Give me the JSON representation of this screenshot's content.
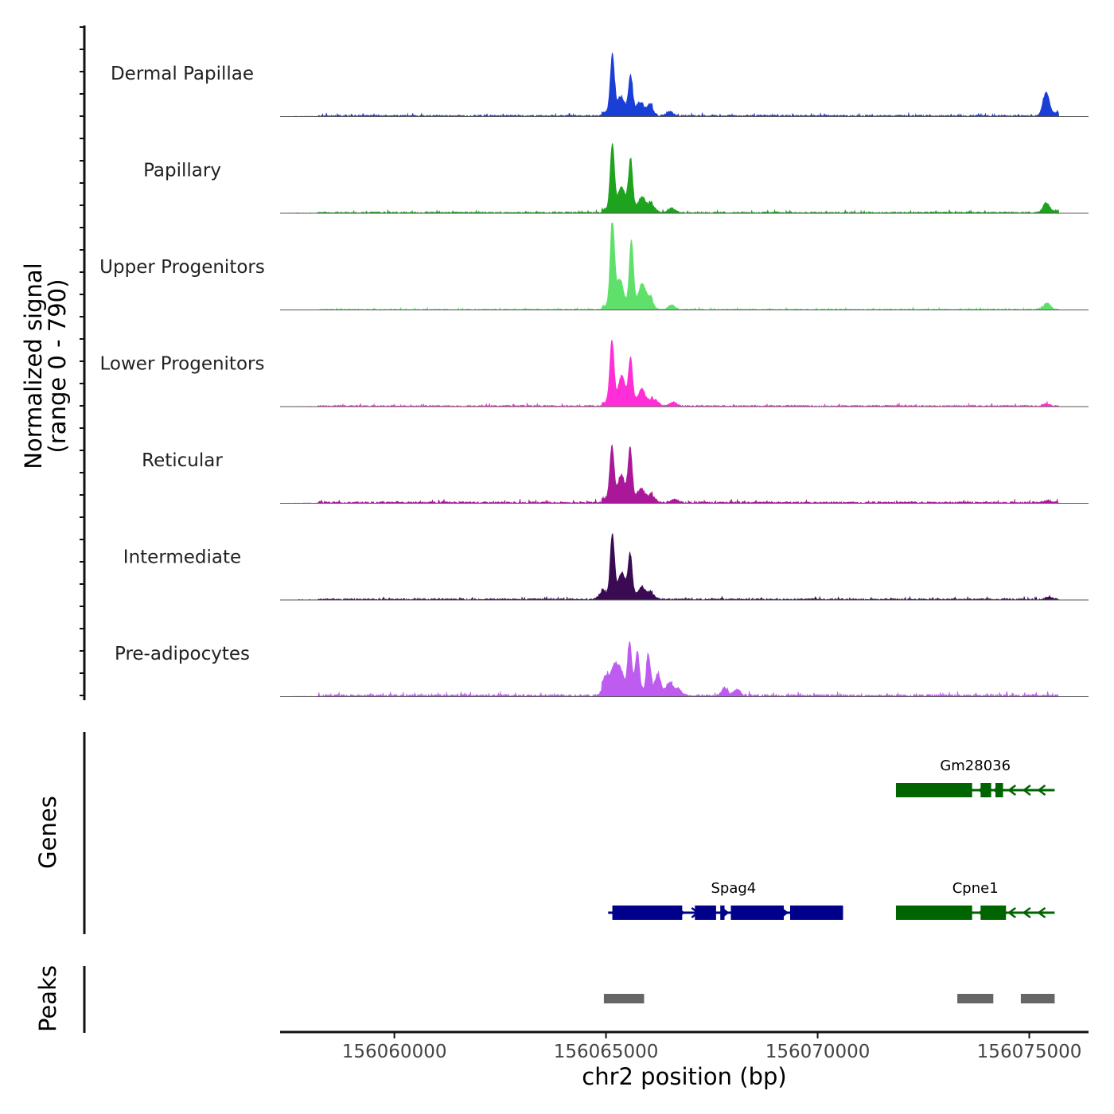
{
  "chart_data": {
    "type": "area",
    "title": "",
    "xlabel": "chr2 position (bp)",
    "ylabel": "Normalized signal",
    "ylabel_range": "(range 0 - 790)",
    "y_range": [
      0,
      790
    ],
    "xlim": [
      156057300,
      156076400
    ],
    "x_ticks": [
      156060000,
      156065000,
      156070000,
      156075000
    ],
    "x_tick_labels": [
      "156060000",
      "156065000",
      "156070000",
      "156075000"
    ],
    "tracks": [
      {
        "name": "Dermal Papillae",
        "color": "#1a3fd6",
        "peaks": [
          [
            156065150,
            520
          ],
          [
            156065350,
            140
          ],
          [
            156065580,
            330
          ],
          [
            156065800,
            90
          ],
          [
            156066050,
            70
          ],
          [
            156066500,
            40
          ],
          [
            156075400,
            210
          ],
          [
            156075680,
            30
          ]
        ],
        "noise": 16
      },
      {
        "name": "Papillary",
        "color": "#1da31d",
        "peaks": [
          [
            156065150,
            590
          ],
          [
            156065370,
            200
          ],
          [
            156065580,
            450
          ],
          [
            156065850,
            110
          ],
          [
            156066100,
            60
          ],
          [
            156066550,
            40
          ],
          [
            156075400,
            90
          ],
          [
            156075650,
            20
          ]
        ],
        "noise": 14
      },
      {
        "name": "Upper Progenitors",
        "color": "#5fe06a",
        "peaks": [
          [
            156065150,
            790
          ],
          [
            156065330,
            240
          ],
          [
            156065600,
            600
          ],
          [
            156065850,
            200
          ],
          [
            156066050,
            80
          ],
          [
            156066550,
            40
          ],
          [
            156075420,
            60
          ]
        ],
        "noise": 10
      },
      {
        "name": "Lower Progenitors",
        "color": "#ff2ed6",
        "peaks": [
          [
            156065140,
            560
          ],
          [
            156065370,
            240
          ],
          [
            156065580,
            400
          ],
          [
            156065850,
            120
          ],
          [
            156066150,
            60
          ],
          [
            156066600,
            35
          ],
          [
            156075400,
            20
          ]
        ],
        "noise": 14
      },
      {
        "name": "Reticular",
        "color": "#aa1899",
        "peaks": [
          [
            156065140,
            480
          ],
          [
            156065360,
            220
          ],
          [
            156065570,
            460
          ],
          [
            156065830,
            90
          ],
          [
            156066100,
            50
          ],
          [
            156066600,
            30
          ],
          [
            156075450,
            20
          ]
        ],
        "noise": 16
      },
      {
        "name": "Intermediate",
        "color": "#3a0a52",
        "peaks": [
          [
            156065150,
            560
          ],
          [
            156065370,
            210
          ],
          [
            156065570,
            380
          ],
          [
            156065850,
            80
          ],
          [
            156066100,
            40
          ],
          [
            156064900,
            60
          ],
          [
            156075450,
            20
          ]
        ],
        "noise": 14
      },
      {
        "name": "Pre-adipocytes",
        "color": "#bf5cf0",
        "peaks": [
          [
            156065000,
            150
          ],
          [
            156065200,
            220
          ],
          [
            156065350,
            180
          ],
          [
            156065560,
            450
          ],
          [
            156065740,
            380
          ],
          [
            156066000,
            340
          ],
          [
            156066220,
            190
          ],
          [
            156066500,
            120
          ],
          [
            156066700,
            60
          ],
          [
            156067800,
            70
          ],
          [
            156068100,
            50
          ]
        ],
        "noise": 22
      }
    ],
    "genes_track_label": "Genes",
    "genes": [
      {
        "name": "Gm28036",
        "strand": "-",
        "color": "#006400",
        "start": 156071850,
        "end": 156075600,
        "row": 1,
        "exons": [
          [
            156071850,
            156073650
          ],
          [
            156073850,
            156074100
          ],
          [
            156074200,
            156074380
          ]
        ]
      },
      {
        "name": "Spag4",
        "strand": "+",
        "color": "#00008b",
        "start": 156065050,
        "end": 156070600,
        "row": 2,
        "exons": [
          [
            156065150,
            156066800
          ],
          [
            156067100,
            156067600
          ],
          [
            156067700,
            156067800
          ],
          [
            156067950,
            156069200
          ],
          [
            156069350,
            156070600
          ]
        ]
      },
      {
        "name": "Cpne1",
        "strand": "-",
        "color": "#006400",
        "start": 156071850,
        "end": 156075600,
        "row": 2,
        "exons": [
          [
            156071850,
            156073650
          ],
          [
            156073850,
            156074450
          ]
        ]
      }
    ],
    "peaks_track_label": "Peaks",
    "peak_regions": [
      [
        156064950,
        156065900
      ],
      [
        156073300,
        156074150
      ],
      [
        156074800,
        156075600
      ]
    ],
    "peak_color": "#666666"
  }
}
